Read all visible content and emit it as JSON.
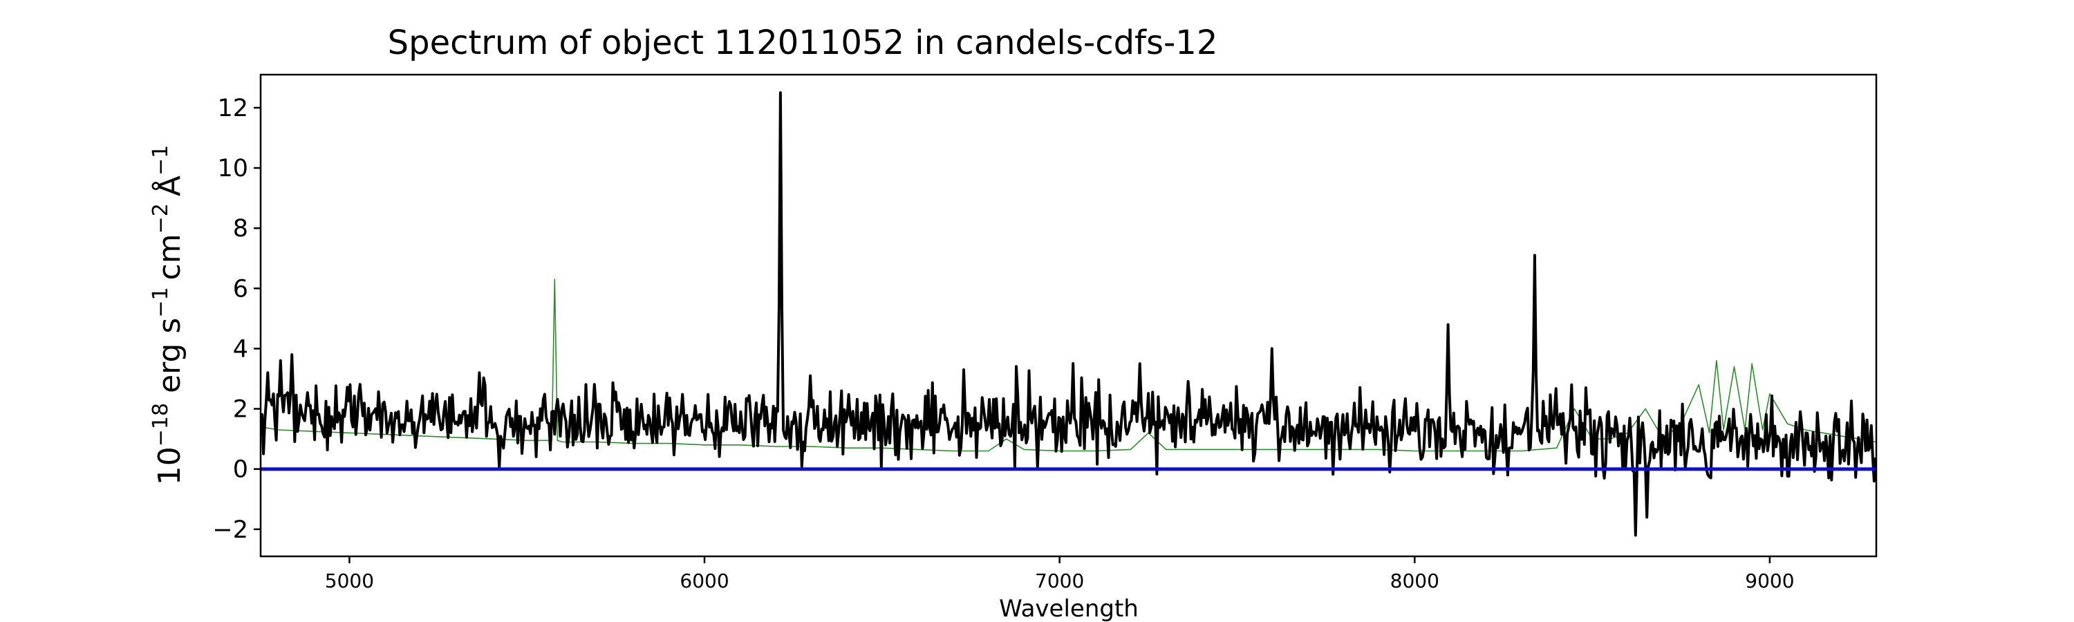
{
  "chart_data": {
    "type": "line",
    "title": "Spectrum of object 112011052 in candels-cdfs-12",
    "xlabel": "Wavelength",
    "ylabel": {
      "base": "10",
      "base_exp": "−18",
      "erg": "erg s",
      "s_exp": "−1",
      "cm": "cm",
      "cm_exp": "−2",
      "angstrom": "Å",
      "a_exp": "−1"
    },
    "xlim": [
      4750,
      9300
    ],
    "ylim": [
      -2.9,
      13.1
    ],
    "xticks": [
      5000,
      6000,
      7000,
      8000,
      9000
    ],
    "xtick_labels": [
      "5000",
      "6000",
      "7000",
      "8000",
      "9000"
    ],
    "yticks": [
      -2,
      0,
      2,
      4,
      6,
      8,
      10,
      12
    ],
    "ytick_labels": [
      "−2",
      "0",
      "2",
      "4",
      "6",
      "8",
      "10",
      "12"
    ],
    "grid": false,
    "series": [
      {
        "role": "model",
        "color": "#2e8b2e",
        "line_width": 1.6,
        "x": [
          4750,
          4800,
          4900,
          5000,
          5100,
          5200,
          5300,
          5400,
          5500,
          5570,
          5578,
          5586,
          5600,
          5700,
          5800,
          5900,
          6000,
          6100,
          6200,
          6300,
          6400,
          6500,
          6600,
          6700,
          6800,
          6850,
          6900,
          7000,
          7100,
          7200,
          7250,
          7300,
          7400,
          7500,
          7600,
          7700,
          7800,
          7900,
          8000,
          8100,
          8200,
          8300,
          8400,
          8450,
          8500,
          8550,
          8600,
          8650,
          8700,
          8750,
          8800,
          8830,
          8850,
          8870,
          8900,
          8930,
          8950,
          8980,
          9000,
          9050,
          9100,
          9150,
          9200,
          9250,
          9300
        ],
        "y": [
          1.4,
          1.3,
          1.25,
          1.2,
          1.15,
          1.1,
          1.05,
          1.0,
          0.95,
          0.95,
          6.3,
          0.95,
          0.9,
          0.9,
          0.85,
          0.85,
          0.8,
          0.8,
          0.75,
          0.75,
          0.7,
          0.7,
          0.65,
          0.6,
          0.6,
          1.0,
          0.65,
          0.6,
          0.6,
          0.65,
          1.2,
          0.65,
          0.65,
          0.65,
          0.65,
          0.65,
          0.65,
          0.65,
          0.6,
          0.6,
          0.6,
          0.6,
          0.7,
          2.0,
          1.0,
          1.0,
          1.2,
          2.0,
          1.0,
          1.5,
          2.8,
          1.2,
          3.6,
          1.3,
          3.4,
          1.3,
          3.5,
          1.3,
          2.5,
          1.5,
          1.3,
          1.2,
          1.1,
          1.0,
          0.9
        ]
      },
      {
        "role": "flux",
        "color": "#000000",
        "line_width": 4,
        "spectrum": {
          "start": 4750,
          "end": 9300,
          "step": 4,
          "baseline": [
            [
              4750,
              1.8
            ],
            [
              5200,
              1.7
            ],
            [
              5600,
              1.6
            ],
            [
              6000,
              1.55
            ],
            [
              6600,
              1.45
            ],
            [
              7200,
              1.5
            ],
            [
              7600,
              1.45
            ],
            [
              8200,
              1.2
            ],
            [
              8700,
              1.0
            ],
            [
              9300,
              0.8
            ]
          ],
          "noise_rms": 0.55,
          "seed": 112011052
        },
        "features": [
          {
            "x": 6214,
            "y": 12.5
          },
          {
            "x": 8337,
            "y": 7.1
          },
          {
            "x": 8095,
            "y": 4.8
          },
          {
            "x": 8257,
            "y": 3.9
          },
          {
            "x": 7597,
            "y": 4.0
          },
          {
            "x": 7228,
            "y": 3.5
          },
          {
            "x": 6298,
            "y": 3.1
          },
          {
            "x": 5365,
            "y": 3.2
          },
          {
            "x": 4840,
            "y": 3.8
          },
          {
            "x": 4807,
            "y": 3.6
          },
          {
            "x": 4770,
            "y": 3.2
          },
          {
            "x": 5422,
            "y": 0.05
          },
          {
            "x": 7931,
            "y": -0.1
          },
          {
            "x": 8263,
            "y": -0.2
          },
          {
            "x": 8622,
            "y": -2.2
          },
          {
            "x": 8656,
            "y": -1.6
          },
          {
            "x": 9295,
            "y": -0.4
          }
        ]
      },
      {
        "role": "zero",
        "color": "#1010c8",
        "line_width": 5,
        "x": [
          4750,
          9300
        ],
        "y": [
          0,
          0
        ]
      }
    ]
  }
}
